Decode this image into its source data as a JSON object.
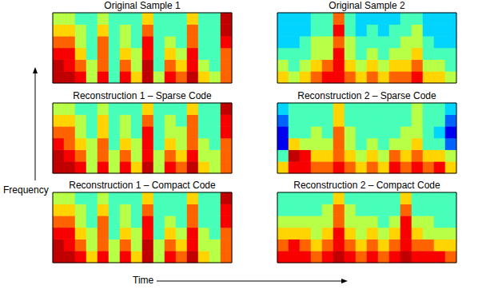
{
  "figure": {
    "xlabel": "Time",
    "ylabel": "Frequency"
  },
  "chart_data": [
    {
      "type": "heatmap",
      "title": "Original Sample 1",
      "tick_labels": false,
      "color_range": [
        0,
        9
      ],
      "cells": [
        [
          9,
          9,
          8,
          5,
          8,
          4,
          8,
          6,
          9,
          5,
          8,
          7,
          9,
          6,
          5,
          7
        ],
        [
          9,
          8,
          7,
          5,
          7,
          4,
          7,
          5,
          9,
          4,
          7,
          6,
          8,
          5,
          4,
          7
        ],
        [
          8,
          8,
          6,
          4,
          7,
          4,
          6,
          5,
          8,
          4,
          6,
          5,
          8,
          4,
          4,
          7
        ],
        [
          7,
          7,
          5,
          4,
          7,
          4,
          5,
          4,
          8,
          4,
          5,
          4,
          7,
          4,
          4,
          8
        ],
        [
          6,
          6,
          5,
          4,
          6,
          4,
          5,
          4,
          7,
          4,
          4,
          4,
          7,
          4,
          4,
          9
        ],
        [
          5,
          5,
          4,
          4,
          5,
          4,
          4,
          4,
          6,
          4,
          4,
          4,
          6,
          4,
          4,
          9
        ]
      ]
    },
    {
      "type": "heatmap",
      "title": "Original Sample 2",
      "tick_labels": false,
      "color_range": [
        0,
        9
      ],
      "cells": [
        [
          6,
          5,
          6,
          7,
          8,
          8,
          7,
          6,
          7,
          6,
          7,
          7,
          8,
          6,
          6,
          5
        ],
        [
          5,
          4,
          5,
          6,
          7,
          8,
          6,
          5,
          6,
          5,
          6,
          6,
          7,
          5,
          5,
          4
        ],
        [
          4,
          4,
          4,
          5,
          5,
          8,
          5,
          4,
          5,
          4,
          5,
          5,
          6,
          4,
          4,
          4
        ],
        [
          3,
          3,
          4,
          5,
          5,
          7,
          5,
          4,
          4,
          4,
          4,
          5,
          5,
          4,
          3,
          3
        ],
        [
          3,
          3,
          3,
          4,
          4,
          8,
          4,
          3,
          4,
          3,
          4,
          4,
          5,
          3,
          3,
          3
        ],
        [
          3,
          3,
          3,
          4,
          4,
          7,
          4,
          3,
          3,
          3,
          3,
          4,
          4,
          3,
          3,
          3
        ]
      ]
    },
    {
      "type": "heatmap",
      "title": "Reconstruction 1 – Sparse Code",
      "tick_labels": false,
      "color_range": [
        0,
        9
      ],
      "cells": [
        [
          9,
          9,
          8,
          5,
          8,
          5,
          8,
          6,
          9,
          5,
          8,
          7,
          9,
          6,
          5,
          7
        ],
        [
          9,
          8,
          7,
          5,
          7,
          5,
          7,
          5,
          8,
          5,
          7,
          6,
          8,
          5,
          5,
          7
        ],
        [
          8,
          7,
          6,
          5,
          7,
          4,
          6,
          5,
          8,
          4,
          6,
          5,
          7,
          5,
          4,
          7
        ],
        [
          7,
          7,
          5,
          4,
          6,
          4,
          5,
          4,
          8,
          4,
          5,
          5,
          7,
          4,
          4,
          8
        ],
        [
          6,
          6,
          5,
          4,
          6,
          4,
          5,
          4,
          7,
          4,
          5,
          4,
          7,
          4,
          4,
          8
        ],
        [
          5,
          5,
          4,
          4,
          5,
          4,
          4,
          4,
          6,
          4,
          4,
          4,
          6,
          4,
          4,
          9
        ]
      ]
    },
    {
      "type": "heatmap",
      "title": "Reconstruction 2 – Sparse Code",
      "tick_labels": false,
      "color_range": [
        0,
        9
      ],
      "cells": [
        [
          6,
          8,
          8,
          7,
          7,
          8,
          7,
          6,
          7,
          6,
          8,
          7,
          8,
          7,
          8,
          6
        ],
        [
          4,
          9,
          8,
          6,
          6,
          7,
          6,
          5,
          6,
          5,
          7,
          6,
          7,
          6,
          6,
          5
        ],
        [
          1,
          6,
          5,
          5,
          5,
          7,
          5,
          4,
          5,
          4,
          5,
          5,
          6,
          4,
          4,
          2
        ],
        [
          1,
          4,
          4,
          5,
          4,
          7,
          5,
          4,
          4,
          4,
          4,
          5,
          5,
          4,
          3,
          1
        ],
        [
          2,
          4,
          4,
          4,
          4,
          6,
          4,
          4,
          4,
          4,
          4,
          4,
          5,
          4,
          4,
          2
        ],
        [
          3,
          4,
          4,
          4,
          4,
          6,
          4,
          4,
          4,
          4,
          4,
          4,
          5,
          4,
          4,
          3
        ]
      ]
    },
    {
      "type": "heatmap",
      "title": "Reconstruction 1 – Compact Code",
      "tick_labels": false,
      "color_range": [
        0,
        9
      ],
      "cells": [
        [
          9,
          9,
          8,
          6,
          8,
          5,
          8,
          6,
          9,
          5,
          8,
          7,
          9,
          6,
          5,
          7
        ],
        [
          9,
          8,
          7,
          5,
          7,
          5,
          7,
          5,
          9,
          5,
          7,
          6,
          8,
          5,
          5,
          7
        ],
        [
          8,
          8,
          6,
          5,
          7,
          4,
          6,
          5,
          8,
          4,
          6,
          5,
          8,
          5,
          4,
          7
        ],
        [
          7,
          7,
          5,
          4,
          7,
          4,
          5,
          4,
          8,
          4,
          5,
          4,
          7,
          4,
          4,
          8
        ],
        [
          6,
          6,
          5,
          4,
          6,
          4,
          5,
          4,
          7,
          4,
          4,
          4,
          7,
          4,
          4,
          8
        ],
        [
          5,
          5,
          4,
          4,
          5,
          4,
          4,
          4,
          6,
          4,
          4,
          4,
          6,
          4,
          4,
          9
        ]
      ]
    },
    {
      "type": "heatmap",
      "title": "Reconstruction 2 – Compact Code",
      "tick_labels": false,
      "color_range": [
        0,
        9
      ],
      "cells": [
        [
          8,
          8,
          8,
          7,
          8,
          9,
          8,
          7,
          8,
          7,
          8,
          9,
          8,
          8,
          8,
          7
        ],
        [
          7,
          8,
          7,
          6,
          7,
          8,
          7,
          6,
          7,
          6,
          7,
          8,
          7,
          7,
          6,
          6
        ],
        [
          6,
          6,
          6,
          5,
          6,
          8,
          6,
          5,
          6,
          5,
          6,
          8,
          6,
          5,
          5,
          5
        ],
        [
          5,
          5,
          5,
          5,
          5,
          7,
          5,
          5,
          5,
          4,
          5,
          8,
          5,
          5,
          4,
          4
        ],
        [
          4,
          4,
          4,
          4,
          5,
          7,
          5,
          4,
          4,
          4,
          4,
          7,
          4,
          4,
          4,
          4
        ],
        [
          4,
          4,
          4,
          4,
          4,
          6,
          4,
          4,
          4,
          4,
          4,
          6,
          4,
          4,
          4,
          4
        ]
      ]
    }
  ]
}
